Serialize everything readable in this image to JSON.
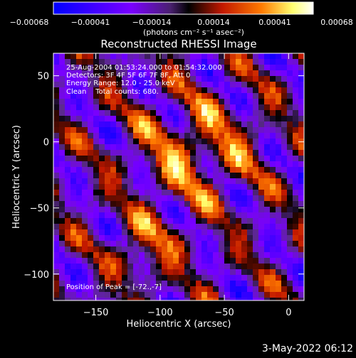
{
  "chart_data": {
    "type": "heatmap",
    "title": "Reconstructed RHESSI Image",
    "xlabel": "Heliocentric X (arcsec)",
    "ylabel": "Heliocentric Y (arcsec)",
    "xlim": [
      -183,
      12
    ],
    "ylim": [
      -120,
      67
    ],
    "xticks": [
      -150,
      -100,
      -50,
      0
    ],
    "yticks": [
      50,
      0,
      -50,
      -100
    ],
    "xtick_labels": [
      "−150",
      "−100",
      "−50",
      "0"
    ],
    "ytick_labels": [
      "50",
      "0",
      "−50",
      "−100"
    ],
    "colorbar": {
      "range": [
        -0.00068,
        0.00068
      ],
      "tick_labels": [
        "−0.00068",
        "−0.00041",
        "−0.00014",
        "0.00014",
        "0.00041",
        "0.00068"
      ],
      "units": "(photons cm⁻² s⁻¹ asec⁻²)",
      "colors": [
        "#0000ff",
        "#7a00ff",
        "#5a2b8a",
        "#000000",
        "#c21800",
        "#ff7a00",
        "#ffff70",
        "#ffffff"
      ]
    },
    "annotations": {
      "time": "25-Aug-2004 01:53:24.000 to 01:54:32.000",
      "detectors": "Detectors: 3F 4F 5F 6F 7F 8F, Att 0",
      "energy": "Energy Range: 12.0 - 25.0 keV",
      "clean": "Clean    Total counts: 680.",
      "peak": "Position of Peak = [-72.,-7]"
    },
    "peak_position": [
      -72,
      -7
    ]
  },
  "footer": {
    "date": "3-May-2022 06:12"
  }
}
